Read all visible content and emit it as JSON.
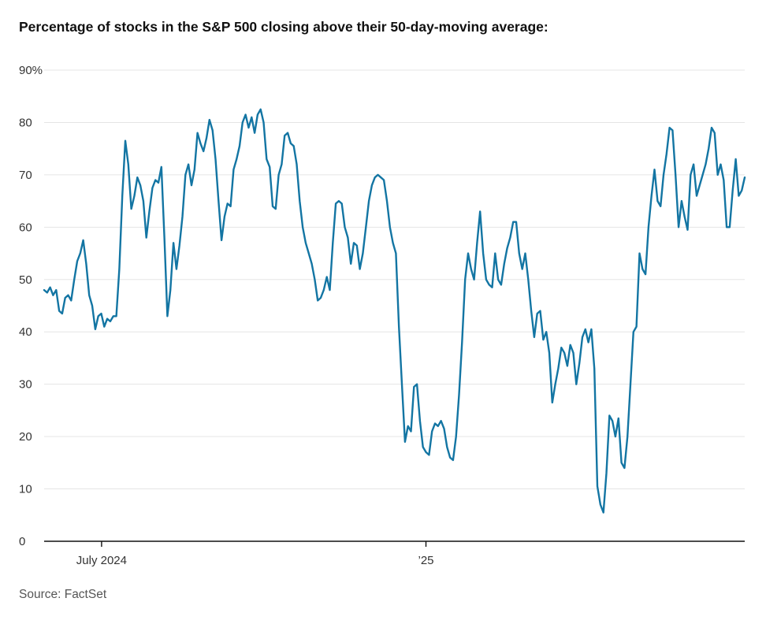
{
  "chart_data": {
    "type": "line",
    "title": "Percentage of stocks in the S&P 500 closing above their 50-day-moving average:",
    "xlabel": "",
    "ylabel": "",
    "ylim": [
      0,
      90
    ],
    "grid": true,
    "legend_position": "none",
    "y_ticks": [
      {
        "value": 0,
        "label": "0"
      },
      {
        "value": 10,
        "label": "10"
      },
      {
        "value": 20,
        "label": "20"
      },
      {
        "value": 30,
        "label": "30"
      },
      {
        "value": 40,
        "label": "40"
      },
      {
        "value": 50,
        "label": "50"
      },
      {
        "value": 60,
        "label": "60"
      },
      {
        "value": 70,
        "label": "70"
      },
      {
        "value": 80,
        "label": "80"
      },
      {
        "value": 90,
        "label": "90%"
      }
    ],
    "x_ticks": [
      {
        "label": "July 2024",
        "pos": 0.082
      },
      {
        "label": "’25",
        "pos": 0.545
      }
    ],
    "series": [
      {
        "name": "Percent of S&P 500 stocks closing above 50-day moving average",
        "color": "#1375a3",
        "values": [
          48,
          47.5,
          48.5,
          47,
          48,
          44,
          43.5,
          46.5,
          47,
          46,
          50,
          53.5,
          55,
          57.5,
          53,
          47,
          45,
          40.5,
          43,
          43.5,
          41,
          42.5,
          42,
          43,
          43,
          52,
          66,
          76.5,
          72,
          63.5,
          66,
          69.5,
          68,
          65,
          58,
          63,
          67.5,
          69,
          68.5,
          71.5,
          58,
          43,
          48,
          57,
          52,
          56.5,
          62,
          70,
          72,
          68,
          71,
          78,
          76,
          74.5,
          77,
          80.5,
          78.5,
          73,
          65,
          57.5,
          62,
          64.5,
          64,
          71,
          73,
          75.5,
          80,
          81.5,
          79,
          81,
          78,
          81.5,
          82.5,
          80,
          73,
          71.5,
          64,
          63.5,
          70,
          72,
          77.5,
          78,
          76,
          75.5,
          72,
          65,
          60,
          57,
          55,
          53,
          50,
          46,
          46.5,
          48,
          50.5,
          48,
          57,
          64.5,
          65,
          64.5,
          60,
          58,
          53,
          57,
          56.5,
          52,
          55,
          60,
          65,
          68,
          69.5,
          70,
          69.5,
          69,
          65,
          60,
          57,
          55,
          41,
          30,
          19,
          22,
          21,
          29.5,
          30,
          23,
          18,
          17,
          16.5,
          21,
          22.5,
          22,
          23,
          21.5,
          18,
          16,
          15.5,
          20,
          28,
          38,
          50,
          55,
          52,
          50,
          57,
          63,
          55,
          50,
          49,
          48.5,
          55,
          50,
          49,
          53,
          56,
          58,
          61,
          61,
          55,
          52,
          55,
          50,
          44,
          39,
          43.5,
          44,
          38.5,
          40,
          36,
          26.5,
          30,
          33,
          37,
          36,
          33.5,
          37.5,
          36,
          30,
          34,
          39,
          40.5,
          38,
          40.5,
          33,
          10.5,
          7,
          5.5,
          13,
          24,
          23,
          20,
          23.5,
          15,
          14,
          20,
          30,
          40,
          41,
          55,
          52,
          51,
          60,
          66,
          71,
          65,
          64,
          70,
          74,
          79,
          78.5,
          70,
          60,
          65,
          62,
          59.5,
          70,
          72,
          66,
          68,
          70,
          72,
          75,
          79,
          78,
          70,
          72,
          69,
          60,
          60,
          67,
          73,
          66,
          67,
          69.5
        ]
      }
    ]
  },
  "footer": {
    "source": "Source: FactSet"
  },
  "colors": {
    "line": "#1375a3",
    "grid": "#e5e5e5",
    "axis": "#111111",
    "label": "#333333",
    "source": "#555555"
  }
}
